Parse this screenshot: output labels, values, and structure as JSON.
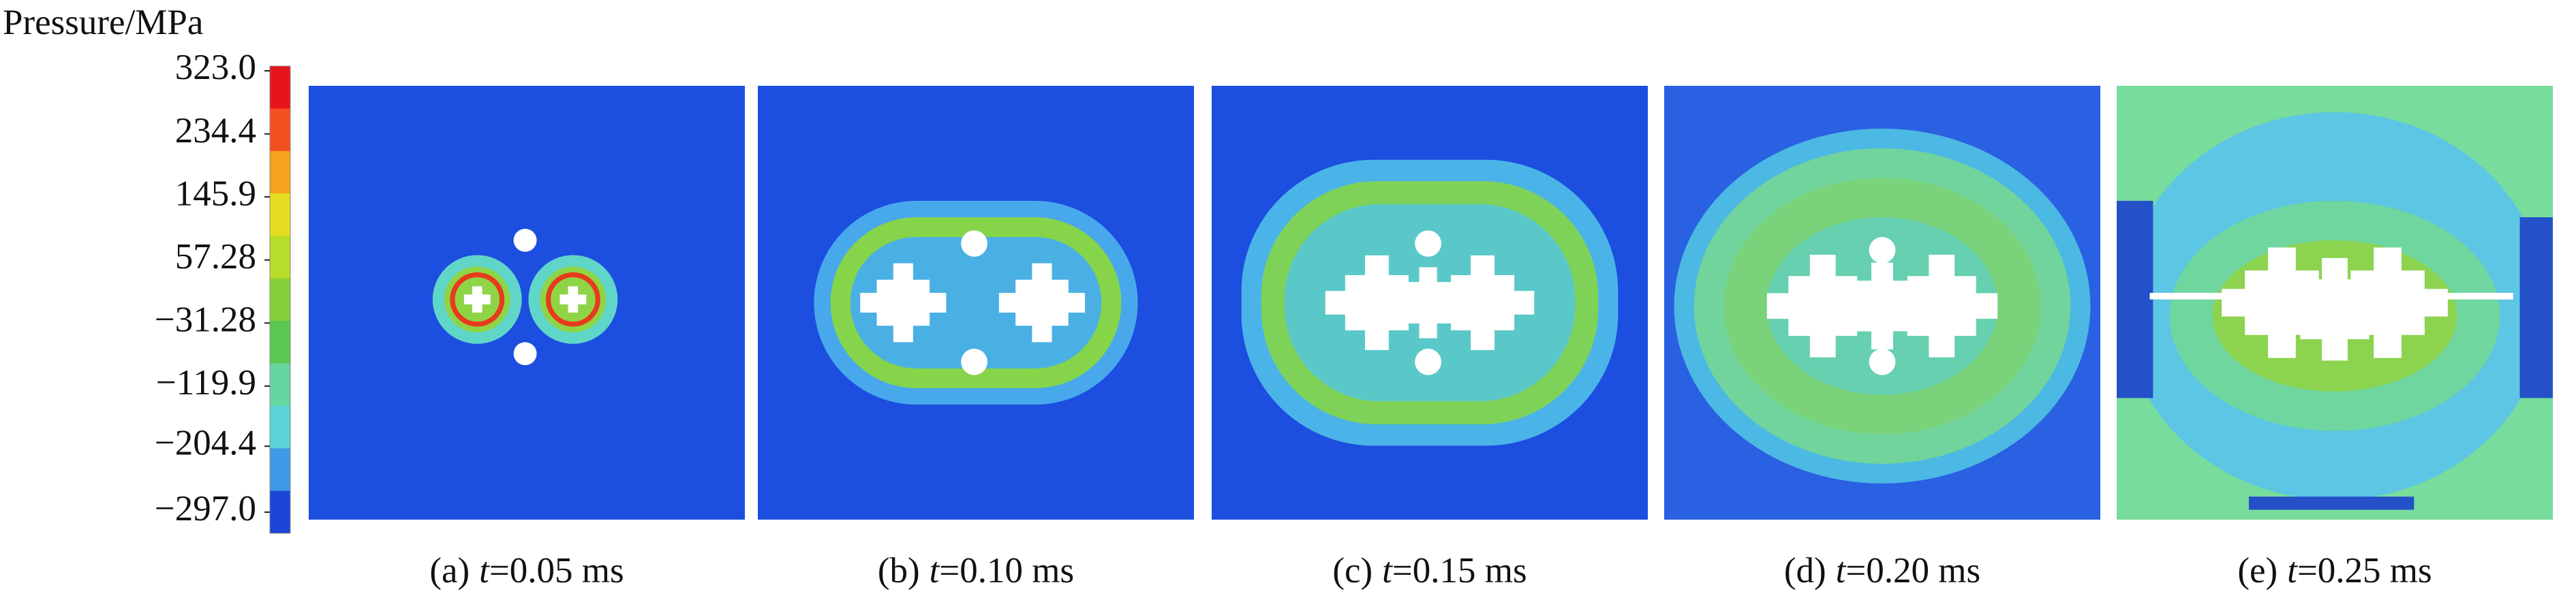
{
  "colorbar": {
    "title": "Pressure/MPa",
    "ticks": [
      {
        "value": 323.0,
        "label": "323.0"
      },
      234.4,
      145.9,
      57.28,
      {
        "value": -31.28,
        "label": "−31.28"
      },
      {
        "value": -119.9,
        "label": "−119.9"
      },
      {
        "value": -204.4,
        "label": "−204.4"
      },
      {
        "value": -297.0,
        "label": "−297.0"
      }
    ],
    "colors": [
      "#e8141c",
      "#f2501e",
      "#f5a21c",
      "#e6dc22",
      "#b8dc2a",
      "#86d03c",
      "#5cc653",
      "#66d6a0",
      "#5ad2d6",
      "#3c9ae6",
      "#1c46d8"
    ]
  },
  "panels": [
    {
      "label": "(a)",
      "variable": "t",
      "time": "=0.05 ms"
    },
    {
      "label": "(b)",
      "variable": "t",
      "time": "=0.10 ms"
    },
    {
      "label": "(c)",
      "variable": "t",
      "time": "=0.15 ms"
    },
    {
      "label": "(d)",
      "variable": "t",
      "time": "=0.20 ms"
    },
    {
      "label": "(e)",
      "variable": "t",
      "time": "=0.25 ms"
    }
  ]
}
